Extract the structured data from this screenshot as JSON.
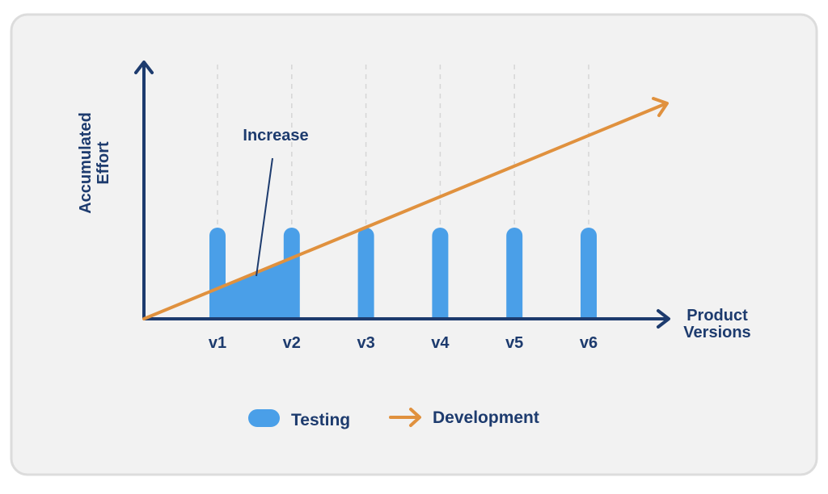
{
  "diagram": {
    "y_axis_label": [
      "Accumulated",
      "Effort"
    ],
    "x_axis_label": [
      "Product",
      "Versions"
    ],
    "versions": [
      "v1",
      "v2",
      "v3",
      "v4",
      "v5",
      "v6"
    ],
    "annotation": "Increase",
    "legend": {
      "testing": "Testing",
      "development": "Development"
    }
  }
}
